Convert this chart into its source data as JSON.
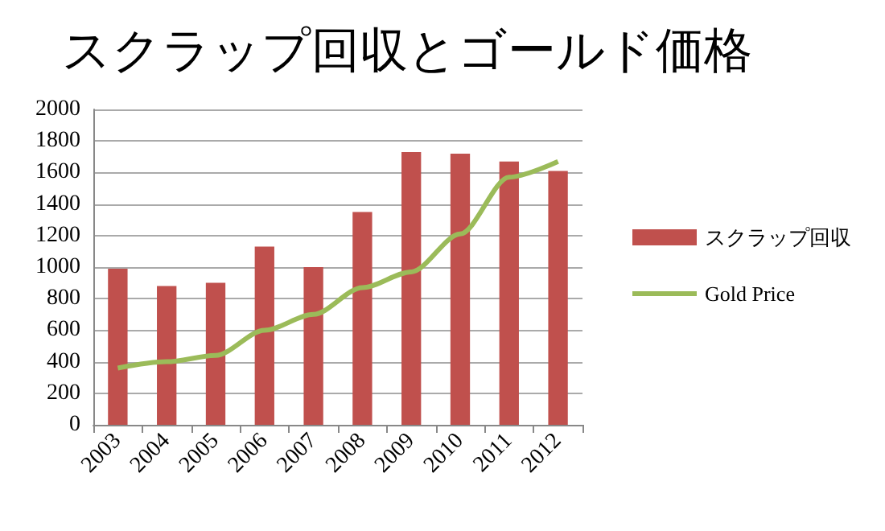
{
  "chart_data": {
    "type": "bar",
    "title": "スクラップ回収とゴールド価格",
    "categories": [
      "2003",
      "2004",
      "2005",
      "2006",
      "2007",
      "2008",
      "2009",
      "2010",
      "2011",
      "2012"
    ],
    "series": [
      {
        "name": "スクラップ回収",
        "color": "#c0504d",
        "values": [
          990,
          880,
          900,
          1130,
          1000,
          1350,
          1730,
          1720,
          1670,
          1610
        ]
      },
      {
        "name": "Gold Price",
        "type": "line",
        "color": "#9bbb59",
        "values": [
          360,
          400,
          440,
          600,
          700,
          870,
          970,
          1210,
          1570,
          1670
        ]
      }
    ],
    "ylim": [
      0,
      2000
    ],
    "yticks": [
      0,
      200,
      400,
      600,
      800,
      1000,
      1200,
      1400,
      1600,
      1800,
      2000
    ],
    "grid": "y",
    "legend": "right",
    "marker": "none",
    "line_style": "solid"
  }
}
